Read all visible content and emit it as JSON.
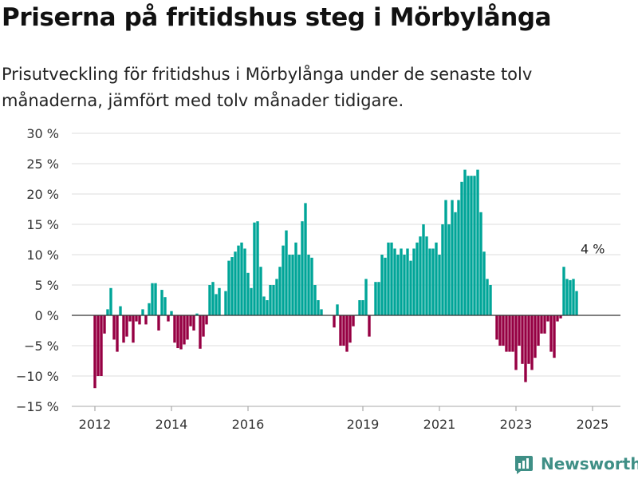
{
  "header": {
    "title": "Priserna på fritidshus steg i Mörbylånga",
    "subtitle": "Prisutveckling för fritidshus i Mörbylånga under de senaste tolv månaderna, jämfört med tolv månader tidigare."
  },
  "brand": {
    "name": "Newsworthy",
    "icon": "bar-chart-logo-icon"
  },
  "colors": {
    "positive": "#00a598",
    "negative": "#960043",
    "grid": "#dddddd",
    "zero": "#333333"
  },
  "chart_data": {
    "type": "bar",
    "title": "Priserna på fritidshus steg i Mörbylånga",
    "ylim": [
      -15,
      30
    ],
    "yticks": [
      -15,
      -10,
      -5,
      0,
      5,
      10,
      15,
      20,
      25,
      30
    ],
    "ytick_labels": [
      "−15 %",
      "−10 %",
      "−5 %",
      "0 %",
      "5 %",
      "10 %",
      "15 %",
      "20 %",
      "25 %",
      "30 %"
    ],
    "xticks": [
      "2012",
      "2014",
      "2016",
      "2019",
      "2021",
      "2023",
      "2025"
    ],
    "grid": true,
    "x_start": "2012-01",
    "x_interval": "month",
    "annotation": {
      "label": "4 %",
      "x": "2025-01",
      "y": 4
    },
    "values": [
      -12,
      -10,
      -10,
      -3,
      1,
      4.5,
      -4,
      -6,
      1.5,
      -4.5,
      -3.5,
      -1,
      -4.5,
      -1,
      -1.5,
      1,
      -1.5,
      2,
      5.3,
      5.3,
      -2.5,
      4.2,
      3,
      -1,
      0.7,
      -4.5,
      -5.4,
      -5.6,
      -4.8,
      -4,
      -1.8,
      -2.5,
      0.3,
      -5.5,
      -3.5,
      -1.5,
      5,
      5.5,
      3.5,
      4.5,
      0,
      4,
      9,
      9.6,
      10.5,
      11.5,
      12,
      11,
      7,
      4.5,
      15.3,
      15.5,
      8,
      3.1,
      2.5,
      5,
      5,
      6,
      8,
      11.5,
      14,
      10,
      10,
      12,
      10,
      15.5,
      18.5,
      10,
      9.5,
      5,
      2.5,
      1,
      null,
      null,
      null,
      -2,
      1.8,
      -5,
      -5,
      -6,
      -4.5,
      -1.8,
      0.1,
      2.5,
      2.5,
      6,
      -3.5,
      null,
      5.5,
      5.5,
      10,
      9.5,
      12,
      12,
      11,
      10,
      11,
      10,
      11,
      9,
      11,
      12,
      13,
      15,
      13,
      11,
      11,
      12,
      10,
      15,
      19,
      15,
      19,
      17,
      19,
      22,
      24,
      23,
      23,
      23,
      24,
      17,
      10.5,
      6,
      5,
      null,
      -4,
      -5,
      -5,
      -6,
      -6,
      -6,
      -9,
      -5,
      -8,
      -11,
      -8,
      -9,
      -7,
      -5,
      -3,
      -3,
      -1,
      -6,
      -7,
      -1,
      -0.5,
      8,
      6,
      5.8,
      6,
      4
    ]
  }
}
